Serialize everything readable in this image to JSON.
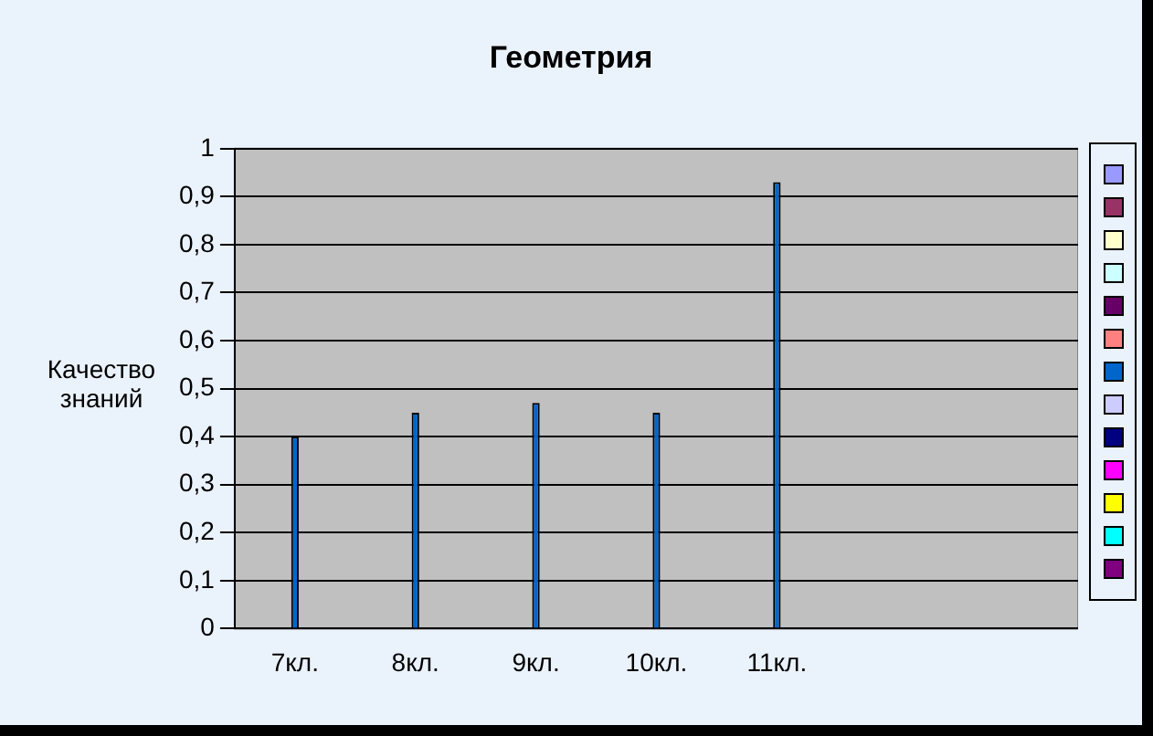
{
  "chart_data": {
    "type": "bar",
    "title": "Геометрия",
    "ylabel": "Качество знаний",
    "categories": [
      "7кл.",
      "8кл.",
      "9кл.",
      "10кл.",
      "11кл.",
      null,
      null
    ],
    "series": [
      {
        "color": "#9999ff",
        "values": [
          null,
          null,
          null,
          null,
          null,
          null,
          null
        ]
      },
      {
        "color": "#993366",
        "values": [
          null,
          null,
          null,
          null,
          null,
          null,
          null
        ]
      },
      {
        "color": "#ffffcc",
        "values": [
          null,
          null,
          null,
          null,
          null,
          null,
          null
        ]
      },
      {
        "color": "#ccffff",
        "values": [
          null,
          null,
          null,
          null,
          null,
          null,
          null
        ]
      },
      {
        "color": "#660066",
        "values": [
          null,
          null,
          null,
          null,
          null,
          null,
          null
        ]
      },
      {
        "color": "#ff8080",
        "values": [
          null,
          null,
          null,
          null,
          null,
          null,
          null
        ]
      },
      {
        "color": "#0066cc",
        "values": [
          0.4,
          0.45,
          0.47,
          0.45,
          0.93,
          null,
          null
        ]
      },
      {
        "color": "#ccccff",
        "values": [
          null,
          null,
          null,
          null,
          null,
          null,
          null
        ]
      },
      {
        "color": "#000080",
        "values": [
          null,
          null,
          null,
          null,
          null,
          null,
          null
        ]
      },
      {
        "color": "#ff00ff",
        "values": [
          null,
          null,
          null,
          null,
          null,
          null,
          null
        ]
      },
      {
        "color": "#ffff00",
        "values": [
          null,
          null,
          null,
          null,
          null,
          null,
          null
        ]
      },
      {
        "color": "#00ffff",
        "values": [
          null,
          null,
          null,
          null,
          null,
          null,
          null
        ]
      },
      {
        "color": "#800080",
        "values": [
          null,
          null,
          null,
          null,
          null,
          null,
          null
        ]
      }
    ],
    "ylim": [
      0,
      1
    ],
    "yticks": [
      0,
      {
        "value": 0.1,
        "label": "0,1"
      },
      {
        "value": 0.2,
        "label": "0,2"
      },
      {
        "value": 0.3,
        "label": "0,3"
      },
      {
        "value": 0.4,
        "label": "0,4"
      },
      {
        "value": 0.5,
        "label": "0,5"
      },
      {
        "value": 0.6,
        "label": "0,6"
      },
      {
        "value": 0.7,
        "label": "0,7"
      },
      {
        "value": 0.8,
        "label": "0,8"
      },
      {
        "value": 0.9,
        "label": "0,9"
      },
      1
    ],
    "grid": "y"
  }
}
